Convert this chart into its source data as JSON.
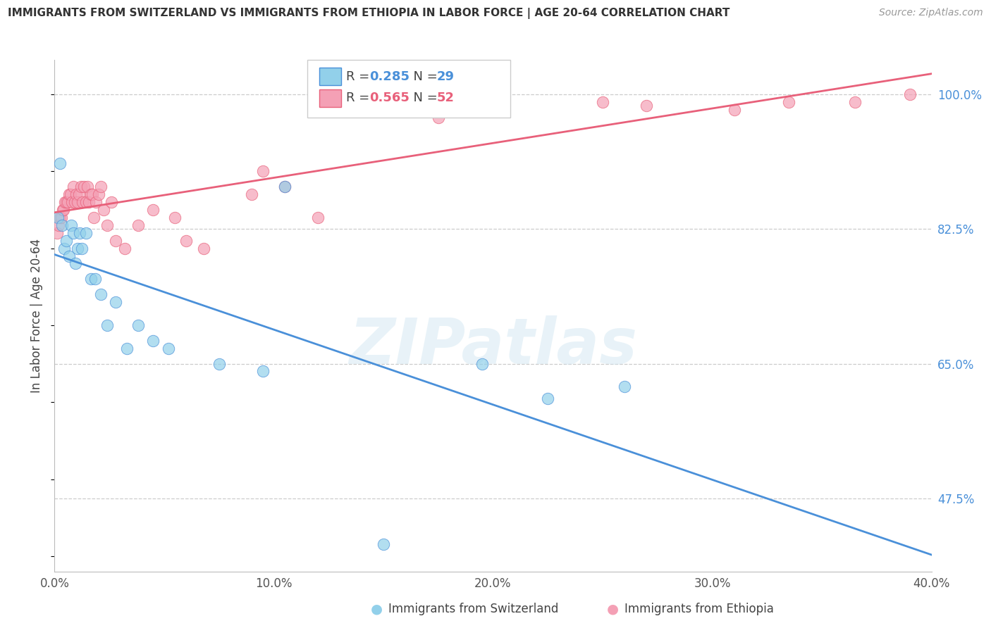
{
  "title": "IMMIGRANTS FROM SWITZERLAND VS IMMIGRANTS FROM ETHIOPIA IN LABOR FORCE | AGE 20-64 CORRELATION CHART",
  "source": "Source: ZipAtlas.com",
  "ylabel": "In Labor Force | Age 20-64",
  "xlim": [
    0.0,
    40.0
  ],
  "ylim": [
    38.0,
    104.5
  ],
  "yticks": [
    47.5,
    65.0,
    82.5,
    100.0
  ],
  "xticks": [
    0.0,
    10.0,
    20.0,
    30.0,
    40.0
  ],
  "swiss_color": "#92d0ea",
  "ethiopia_color": "#f4a0b5",
  "swiss_line_color": "#4a90d9",
  "ethiopia_line_color": "#e8607a",
  "swiss_R": 0.285,
  "swiss_N": 29,
  "ethiopia_R": 0.565,
  "ethiopia_N": 52,
  "watermark": "ZIPatlas",
  "swiss_x": [
    0.15,
    0.25,
    0.35,
    0.45,
    0.55,
    0.65,
    0.75,
    0.85,
    0.95,
    1.05,
    1.15,
    1.25,
    1.45,
    1.65,
    1.85,
    2.1,
    2.4,
    2.8,
    3.3,
    3.8,
    5.2,
    7.5,
    9.5,
    10.5,
    15.0,
    19.5,
    22.5,
    26.0,
    4.5
  ],
  "swiss_y": [
    84.0,
    91.0,
    83.0,
    80.0,
    81.0,
    79.0,
    83.0,
    82.0,
    78.0,
    80.0,
    82.0,
    80.0,
    82.0,
    76.0,
    76.0,
    74.0,
    70.0,
    73.0,
    67.0,
    70.0,
    67.0,
    65.0,
    64.0,
    88.0,
    41.5,
    65.0,
    60.5,
    62.0,
    68.0
  ],
  "ethiopia_x": [
    0.12,
    0.18,
    0.24,
    0.3,
    0.36,
    0.42,
    0.48,
    0.54,
    0.6,
    0.66,
    0.72,
    0.78,
    0.85,
    0.92,
    0.98,
    1.05,
    1.12,
    1.2,
    1.28,
    1.35,
    1.42,
    1.5,
    1.58,
    1.65,
    1.72,
    1.8,
    1.9,
    2.0,
    2.1,
    2.25,
    2.4,
    2.6,
    2.8,
    3.2,
    3.8,
    4.5,
    5.5,
    6.8,
    9.5,
    12.0,
    6.0,
    9.0,
    10.5,
    15.0,
    17.5,
    20.5,
    25.0,
    27.0,
    31.0,
    33.5,
    36.5,
    39.0
  ],
  "ethiopia_y": [
    82.0,
    83.0,
    84.0,
    84.0,
    85.0,
    85.0,
    86.0,
    86.0,
    86.0,
    87.0,
    87.0,
    86.0,
    88.0,
    86.0,
    87.0,
    86.0,
    87.0,
    88.0,
    86.0,
    88.0,
    86.0,
    88.0,
    86.0,
    87.0,
    87.0,
    84.0,
    86.0,
    87.0,
    88.0,
    85.0,
    83.0,
    86.0,
    81.0,
    80.0,
    83.0,
    85.0,
    84.0,
    80.0,
    90.0,
    84.0,
    81.0,
    87.0,
    88.0,
    99.0,
    97.0,
    99.5,
    99.0,
    98.5,
    98.0,
    99.0,
    99.0,
    100.0
  ]
}
